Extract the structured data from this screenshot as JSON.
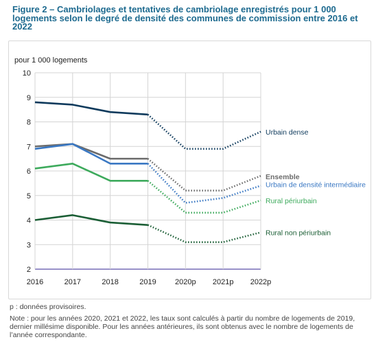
{
  "title": "Figure 2 – Cambriolages et tentatives de cambriolage enregistrés pour 1 000 logements selon le degré de densité des communes de commission entre 2016 et 2022",
  "footnotes": {
    "provisional": "p : données provisoires.",
    "note": "Note : pour les années 2020, 2021 et 2022, les taux sont calculés à partir du nombre de logements de 2019, dernier millésime disponible. Pour les années antérieures, ils sont obtenus avec le nombre de logements de l’année correspondante."
  },
  "chart_data": {
    "type": "line",
    "ylabel": "pour 1 000 logements",
    "xlabel": "",
    "categories": [
      "2016",
      "2017",
      "2018",
      "2019",
      "2020p",
      "2021p",
      "2022p"
    ],
    "ylim": [
      2,
      10
    ],
    "yticks": [
      2,
      3,
      4,
      5,
      6,
      7,
      8,
      9,
      10
    ],
    "grid": true,
    "provisional_from_index": 3,
    "series": [
      {
        "name": "Urbain dense",
        "values": [
          8.8,
          8.7,
          8.4,
          8.3,
          6.9,
          6.9,
          7.6
        ],
        "color": "#0e3a5c",
        "bold": false
      },
      {
        "name": "Ensemble",
        "values": [
          7.0,
          7.1,
          6.5,
          6.5,
          5.2,
          5.2,
          5.8
        ],
        "color": "#6b6b6b",
        "bold": true
      },
      {
        "name": "Urbain de densité intermédiaire",
        "values": [
          6.9,
          7.1,
          6.3,
          6.3,
          4.7,
          4.9,
          5.4
        ],
        "color": "#3a78c3",
        "bold": false
      },
      {
        "name": "Rural périurbain",
        "values": [
          6.1,
          6.3,
          5.6,
          5.6,
          4.3,
          4.3,
          4.8
        ],
        "color": "#3daa5c",
        "bold": false
      },
      {
        "name": "Rural non périurbain",
        "values": [
          4.0,
          4.2,
          3.9,
          3.8,
          3.1,
          3.1,
          3.5
        ],
        "color": "#1b5e35",
        "bold": false
      }
    ]
  }
}
